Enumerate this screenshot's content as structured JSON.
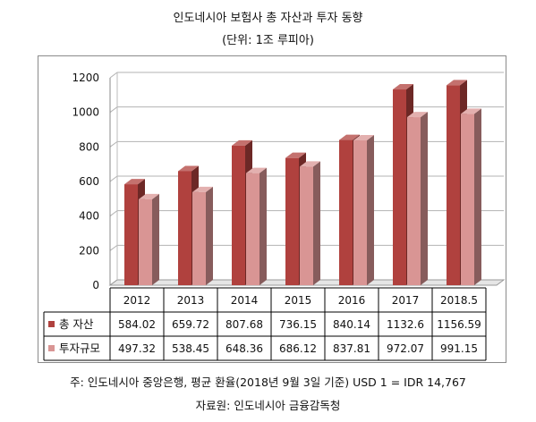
{
  "title": "인도네시아 보험사 총 자산과 투자 동향",
  "subtitle": "(단위: 1조 루피아)",
  "note": "주: 인도네시아 중앙은행, 평균 환율(2018년 9월 3일 기준) USD 1 = IDR 14,767",
  "source": "자료원: 인도네시아 금융감독청",
  "colors": {
    "total_assets": "#b0413e",
    "investment": "#d99594",
    "grid": "#b3b3b3"
  },
  "chart_data": {
    "type": "bar",
    "title": "인도네시아 보험사 총 자산과 투자 동향",
    "subtitle": "(단위: 1조 루피아)",
    "categories": [
      "2012",
      "2013",
      "2014",
      "2015",
      "2016",
      "2017",
      "2018.5"
    ],
    "series": [
      {
        "name": "총 자산",
        "values": [
          584.02,
          659.72,
          807.68,
          736.15,
          840.14,
          1132.6,
          1156.59
        ]
      },
      {
        "name": "투자규모",
        "values": [
          497.32,
          538.45,
          648.36,
          686.12,
          837.81,
          972.07,
          991.15
        ]
      }
    ],
    "value_labels": [
      [
        "584.02",
        "659.72",
        "807.68",
        "736.15",
        "840.14",
        "1132.6",
        "1156.59"
      ],
      [
        "497.32",
        "538.45",
        "648.36",
        "686.12",
        "837.81",
        "972.07",
        "991.15"
      ]
    ],
    "y_ticks": [
      "0",
      "200",
      "400",
      "600",
      "800",
      "1000",
      "1200"
    ],
    "ylim": [
      0,
      1200
    ],
    "grid": true,
    "style": "3d clustered columns with data table",
    "legend_placement": "data-table"
  }
}
